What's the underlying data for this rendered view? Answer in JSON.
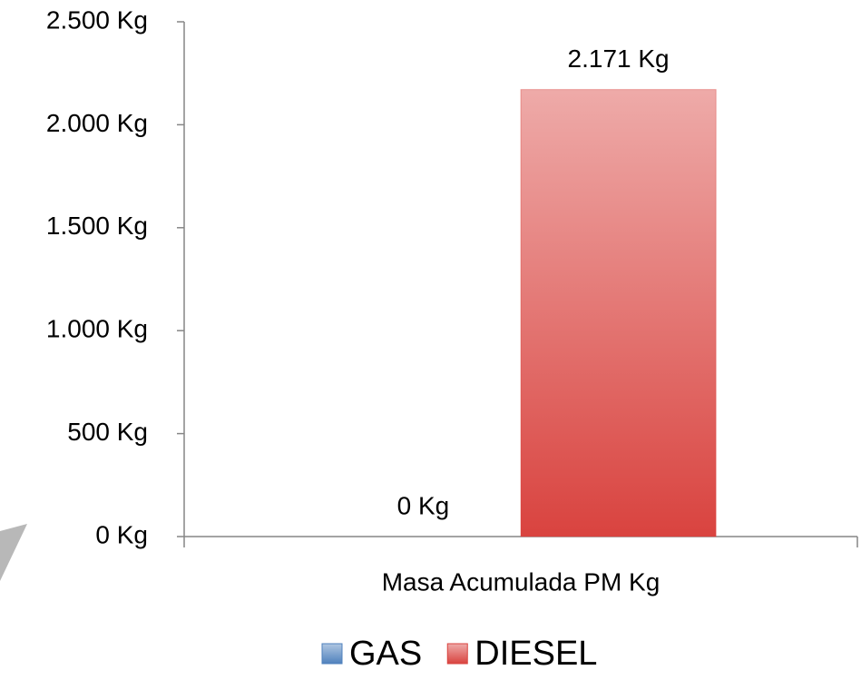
{
  "chart_data": {
    "type": "bar",
    "categories": [
      "Masa Acumulada PM Kg"
    ],
    "series": [
      {
        "name": "GAS",
        "color": "#4f81bd",
        "values": [
          0
        ],
        "value_labels": [
          "0 Kg"
        ]
      },
      {
        "name": "DIESEL",
        "color": "#d9433f",
        "values": [
          2171
        ],
        "value_labels": [
          "2.171 Kg"
        ]
      }
    ],
    "ylim": [
      0,
      2500
    ],
    "yticks": [
      {
        "value": 0,
        "label": "0 Kg"
      },
      {
        "value": 500,
        "label": "500 Kg"
      },
      {
        "value": 1000,
        "label": "1.000 Kg"
      },
      {
        "value": 1500,
        "label": "1.500 Kg"
      },
      {
        "value": 2000,
        "label": "2.000 Kg"
      },
      {
        "value": 2500,
        "label": "2.500 Kg"
      }
    ],
    "grid": false,
    "legend": "bottom"
  }
}
